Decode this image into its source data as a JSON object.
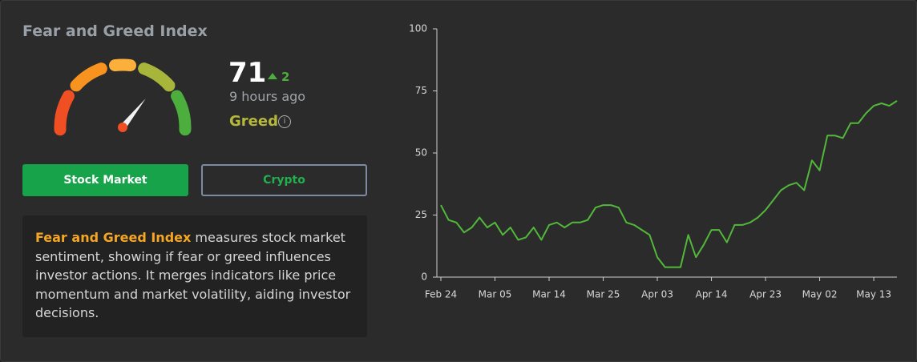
{
  "header": {
    "title": "Fear and Greed Index"
  },
  "index": {
    "value": 71,
    "change": 2,
    "updated": "9 hours ago",
    "label": "Greed"
  },
  "gauge_colors": [
    "#f04e23",
    "#f7931e",
    "#fbb03b",
    "#a8b53b",
    "#4cae3c"
  ],
  "tabs": [
    "Stock Market",
    "Crypto"
  ],
  "description": {
    "highlight": "Fear and Greed Index",
    "text": " measures stock market sentiment, showing if fear or greed influences investor actions. It merges indicators like price momentum and market volatility, aiding investor decisions."
  },
  "chart_data": {
    "type": "line",
    "categories": [
      "Feb 24",
      null,
      null,
      null,
      null,
      null,
      null,
      "Mar 05",
      null,
      null,
      null,
      null,
      null,
      null,
      "Mar 14",
      null,
      null,
      null,
      null,
      null,
      null,
      "Mar 25",
      null,
      null,
      null,
      null,
      null,
      null,
      "Apr 03",
      null,
      null,
      null,
      null,
      null,
      null,
      "Apr 14",
      null,
      null,
      null,
      null,
      null,
      null,
      "Apr 23",
      null,
      null,
      null,
      null,
      null,
      null,
      "May 02",
      null,
      null,
      null,
      null,
      null,
      null,
      "May 13",
      null,
      null,
      null
    ],
    "series": [
      {
        "color": "#52b83a",
        "values": [
          29,
          23,
          22,
          18,
          20,
          24,
          20,
          22,
          17,
          20,
          15,
          16,
          20,
          15,
          21,
          22,
          20,
          22,
          22,
          23,
          28,
          29,
          29,
          28,
          22,
          21,
          19,
          17,
          8,
          4,
          4,
          4,
          17,
          8,
          13,
          19,
          19,
          14,
          21,
          21,
          22,
          24,
          27,
          31,
          35,
          37,
          38,
          35,
          47,
          43,
          57,
          57,
          56,
          62,
          62,
          66,
          69,
          70,
          69,
          71
        ]
      }
    ],
    "ylim": [
      0,
      100
    ],
    "yticks": [
      0,
      25,
      50,
      75,
      100
    ],
    "grid": false
  }
}
